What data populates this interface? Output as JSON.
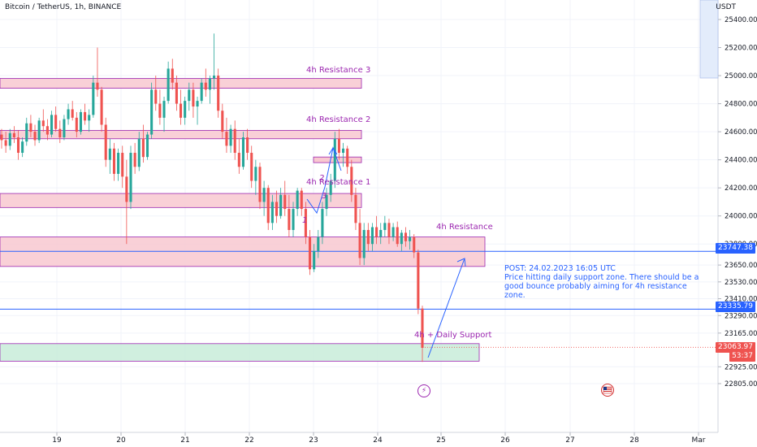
{
  "header": {
    "title": "Bitcoin / TetherUS, 1h, BINANCE",
    "currency": "USDT"
  },
  "price_tags": {
    "top": "23747.38",
    "mid": "23335.79",
    "current_price": "23063.97",
    "countdown": "53:37"
  },
  "zone_labels": {
    "r3": "4h Resistance 3",
    "r2": "4h Resistance 2",
    "r1": "4h Resistance 1",
    "r0": "4h Resistance",
    "support": "4h + Daily Support"
  },
  "note": {
    "line1": "POST: 24.02.2023 16:05 UTC",
    "line2": "Price hitting daily support zone. There should be a good bounce probably aiming for 4h resistance zone."
  },
  "marks": {
    "wave_1": "1",
    "wave_2": "2",
    "wave_3": "3"
  },
  "icons": {
    "bolt": "lightning-icon",
    "flag": "us-flag-icon"
  },
  "colors": {
    "up": "#26a69a",
    "down": "#ef5350",
    "resistance_fill": "#f8c8d0",
    "resistance_border": "#9c27b0",
    "support_fill": "#c8ecd9",
    "line_blue": "#2962ff"
  },
  "chart_data": {
    "type": "candlestick",
    "title": "Bitcoin / TetherUS, 1h, BINANCE",
    "ylabel": "USDT",
    "ylim": [
      22700,
      25500
    ],
    "y_ticks": [
      "25400.00",
      "25200.00",
      "25000.00",
      "24800.00",
      "24600.00",
      "24400.00",
      "24200.00",
      "24000.00",
      "23800.00",
      "23650.00",
      "23530.00",
      "23410.00",
      "23290.00",
      "23165.00",
      "22925.00",
      "22805.00"
    ],
    "x_ticks": [
      "19",
      "20",
      "21",
      "22",
      "23",
      "24",
      "25",
      "26",
      "27",
      "28",
      "Mar"
    ],
    "zones": [
      {
        "label": "4h Resistance 3",
        "from": 24910,
        "to": 24980,
        "kind": "resistance"
      },
      {
        "label": "4h Resistance 2",
        "from": 24550,
        "to": 24610,
        "kind": "resistance"
      },
      {
        "label": "4h Resistance 1",
        "from": 24060,
        "to": 24160,
        "kind": "resistance"
      },
      {
        "label": "4h Resistance",
        "from": 23640,
        "to": 23850,
        "kind": "resistance"
      },
      {
        "label": "4h + Daily Support",
        "from": 22965,
        "to": 23090,
        "kind": "support"
      }
    ],
    "horizontal_lines": [
      23747.38,
      23335.79
    ],
    "series": [
      {
        "name": "",
        "ohlc": [
          [
            24580,
            24620,
            24480,
            24540
          ],
          [
            24540,
            24600,
            24450,
            24500
          ],
          [
            24500,
            24620,
            24470,
            24590
          ],
          [
            24590,
            24640,
            24520,
            24560
          ],
          [
            24560,
            24610,
            24400,
            24450
          ],
          [
            24450,
            24560,
            24420,
            24530
          ],
          [
            24530,
            24700,
            24500,
            24660
          ],
          [
            24660,
            24720,
            24560,
            24600
          ],
          [
            24600,
            24650,
            24500,
            24540
          ],
          [
            24540,
            24700,
            24520,
            24680
          ],
          [
            24680,
            24760,
            24600,
            24640
          ],
          [
            24640,
            24690,
            24540,
            24580
          ],
          [
            24580,
            24750,
            24560,
            24720
          ],
          [
            24720,
            24780,
            24600,
            24620
          ],
          [
            24620,
            24680,
            24520,
            24560
          ],
          [
            24560,
            24720,
            24540,
            24690
          ],
          [
            24690,
            24800,
            24650,
            24760
          ],
          [
            24760,
            24820,
            24680,
            24700
          ],
          [
            24700,
            24740,
            24560,
            24600
          ],
          [
            24600,
            24760,
            24580,
            24740
          ],
          [
            24740,
            24800,
            24650,
            24680
          ],
          [
            24680,
            24760,
            24600,
            24720
          ],
          [
            24720,
            25000,
            24700,
            24950
          ],
          [
            24950,
            25200,
            24850,
            24900
          ],
          [
            24900,
            24920,
            24600,
            24650
          ],
          [
            24650,
            24700,
            24350,
            24400
          ],
          [
            24400,
            24550,
            24300,
            24480
          ],
          [
            24480,
            24520,
            24250,
            24300
          ],
          [
            24300,
            24480,
            24250,
            24450
          ],
          [
            24450,
            24500,
            24200,
            24280
          ],
          [
            24280,
            24400,
            23800,
            24100
          ],
          [
            24100,
            24500,
            24050,
            24450
          ],
          [
            24450,
            24520,
            24300,
            24350
          ],
          [
            24350,
            24600,
            24320,
            24550
          ],
          [
            24550,
            24650,
            24380,
            24420
          ],
          [
            24420,
            24600,
            24400,
            24580
          ],
          [
            24580,
            24950,
            24550,
            24900
          ],
          [
            24900,
            25000,
            24750,
            24800
          ],
          [
            24800,
            24900,
            24650,
            24700
          ],
          [
            24700,
            24850,
            24600,
            24820
          ],
          [
            24820,
            25100,
            24800,
            25050
          ],
          [
            25050,
            25120,
            24900,
            24950
          ],
          [
            24950,
            25000,
            24750,
            24800
          ],
          [
            24800,
            24900,
            24650,
            24700
          ],
          [
            24700,
            24850,
            24650,
            24820
          ],
          [
            24820,
            24950,
            24750,
            24900
          ],
          [
            24900,
            24950,
            24700,
            24780
          ],
          [
            24780,
            24850,
            24650,
            24820
          ],
          [
            24820,
            24980,
            24800,
            24950
          ],
          [
            24950,
            25050,
            24850,
            24900
          ],
          [
            24900,
            25000,
            24800,
            24980
          ],
          [
            24980,
            25300,
            24900,
            25000
          ],
          [
            25000,
            25050,
            24700,
            24750
          ],
          [
            24750,
            24800,
            24550,
            24600
          ],
          [
            24600,
            24700,
            24450,
            24500
          ],
          [
            24500,
            24650,
            24450,
            24620
          ],
          [
            24620,
            24680,
            24400,
            24450
          ],
          [
            24450,
            24550,
            24300,
            24350
          ],
          [
            24350,
            24600,
            24330,
            24560
          ],
          [
            24560,
            24620,
            24400,
            24450
          ],
          [
            24450,
            24500,
            24200,
            24250
          ],
          [
            24250,
            24400,
            24150,
            24350
          ],
          [
            24350,
            24380,
            24050,
            24100
          ],
          [
            24100,
            24250,
            24000,
            24200
          ],
          [
            24200,
            24220,
            23900,
            23950
          ],
          [
            23950,
            24150,
            23900,
            24100
          ],
          [
            24100,
            24180,
            23950,
            24000
          ],
          [
            24000,
            24200,
            23980,
            24150
          ],
          [
            24150,
            24250,
            24000,
            24050
          ],
          [
            24050,
            24150,
            23850,
            23900
          ],
          [
            23900,
            24100,
            23850,
            24050
          ],
          [
            24050,
            24200,
            24000,
            24180
          ],
          [
            24180,
            24200,
            24000,
            24050
          ],
          [
            24050,
            24100,
            23800,
            23850
          ],
          [
            23850,
            23900,
            23580,
            23620
          ],
          [
            23620,
            23800,
            23600,
            23750
          ],
          [
            23750,
            23900,
            23700,
            23850
          ],
          [
            23850,
            24100,
            23800,
            24050
          ],
          [
            24050,
            24200,
            24000,
            24150
          ],
          [
            24150,
            24300,
            24100,
            24250
          ],
          [
            24250,
            24600,
            24200,
            24550
          ],
          [
            24550,
            24620,
            24400,
            24450
          ],
          [
            24450,
            24520,
            24350,
            24480
          ],
          [
            24480,
            24500,
            24300,
            24350
          ],
          [
            24350,
            24400,
            24100,
            24150
          ],
          [
            24150,
            24200,
            23900,
            23950
          ],
          [
            23950,
            24050,
            23650,
            23700
          ],
          [
            23700,
            23950,
            23650,
            23900
          ],
          [
            23900,
            23950,
            23750,
            23800
          ],
          [
            23800,
            23950,
            23750,
            23920
          ],
          [
            23920,
            24000,
            23800,
            23850
          ],
          [
            23850,
            23950,
            23800,
            23900
          ],
          [
            23900,
            24000,
            23850,
            23950
          ],
          [
            23950,
            23980,
            23800,
            23850
          ],
          [
            23850,
            23950,
            23820,
            23920
          ],
          [
            23920,
            23960,
            23780,
            23800
          ],
          [
            23800,
            23900,
            23750,
            23880
          ],
          [
            23880,
            23920,
            23780,
            23820
          ],
          [
            23820,
            23900,
            23760,
            23850
          ],
          [
            23850,
            23870,
            23700,
            23740
          ],
          [
            23740,
            23760,
            23300,
            23340
          ],
          [
            23340,
            23360,
            22960,
            23060
          ]
        ]
      }
    ]
  }
}
